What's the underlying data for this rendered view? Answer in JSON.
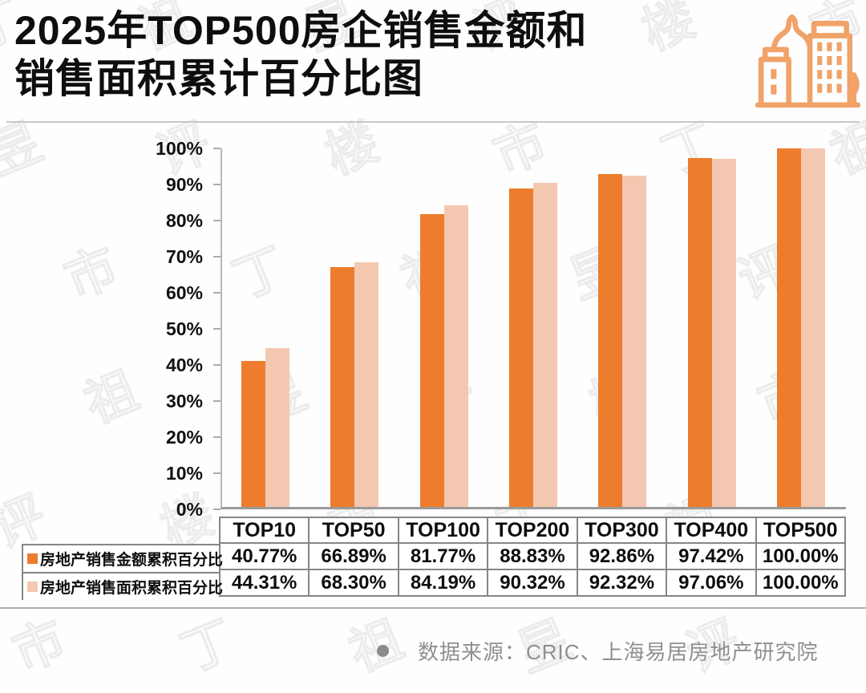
{
  "title": {
    "line1": "2025年TOP500房企销售金额和",
    "line2": "销售面积累计百分比图"
  },
  "colors": {
    "amount_series": "#ED7C2D",
    "area_series": "#F4C8B0",
    "icon_stroke": "#F0A269",
    "title_text": "#0E0E0E",
    "footer_text": "#8F8F8F"
  },
  "chart_data": {
    "type": "bar",
    "categories": [
      "TOP10",
      "TOP50",
      "TOP100",
      "TOP200",
      "TOP300",
      "TOP400",
      "TOP500"
    ],
    "series": [
      {
        "name": "房地产销售金额累积百分比",
        "color": "#ED7C2D",
        "values": [
          40.77,
          66.89,
          81.77,
          88.83,
          92.86,
          97.42,
          100.0
        ]
      },
      {
        "name": "房地产销售面积累积百分比",
        "color": "#F4C8B0",
        "values": [
          44.31,
          68.3,
          84.19,
          90.32,
          92.32,
          97.06,
          100.0
        ]
      }
    ],
    "title": "2025年TOP500房企销售金额和销售面积累计百分比图",
    "xlabel": "",
    "ylabel": "",
    "ylim": [
      0,
      100
    ],
    "yticks": [
      "100%",
      "90%",
      "80%",
      "70%",
      "60%",
      "50%",
      "40%",
      "30%",
      "20%",
      "10%",
      "0%"
    ],
    "grid": false,
    "legend_position": "table-left-of-rows"
  },
  "table": {
    "columns": [
      "TOP10",
      "TOP50",
      "TOP100",
      "TOP200",
      "TOP300",
      "TOP400",
      "TOP500"
    ],
    "row_labels": [
      "房地产销售金额累积百分比",
      "房地产销售面积累积百分比"
    ],
    "rows": [
      [
        "40.77%",
        "66.89%",
        "81.77%",
        "88.83%",
        "92.86%",
        "97.42%",
        "100.00%"
      ],
      [
        "44.31%",
        "68.30%",
        "84.19%",
        "90.32%",
        "92.32%",
        "97.06%",
        "100.00%"
      ]
    ]
  },
  "footer": {
    "source": "数据来源：CRIC、上海易居房地产研究院"
  },
  "watermark": {
    "text": "丁祖昱评楼市"
  }
}
